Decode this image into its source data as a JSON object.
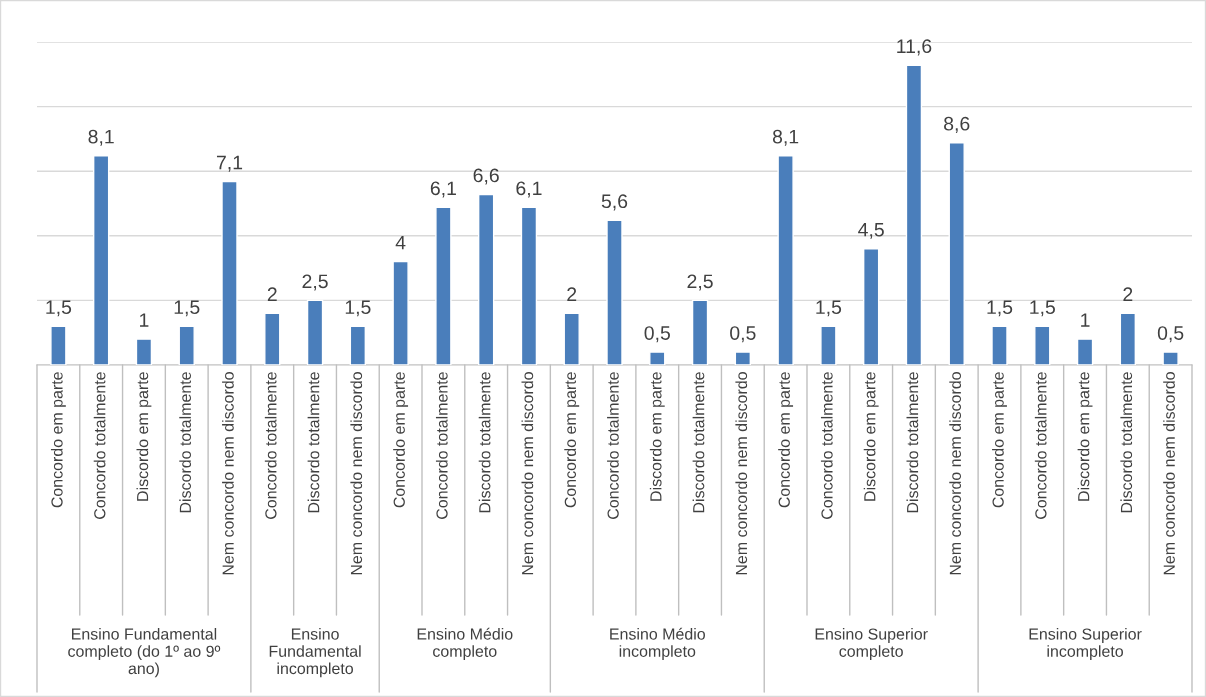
{
  "chart_data": {
    "type": "bar",
    "categories": [
      "Concordo em parte",
      "Concordo totalmente",
      "Discordo em parte",
      "Discordo totalmente",
      "Nem concordo nem discordo",
      "Concordo totalmente",
      "Discordo totalmente",
      "Nem concordo nem discordo",
      "Concordo em parte",
      "Concordo totalmente",
      "Discordo totalmente",
      "Nem concordo nem discordo",
      "Concordo em parte",
      "Concordo totalmente",
      "Discordo em parte",
      "Discordo totalmente",
      "Nem concordo nem discordo",
      "Concordo em parte",
      "Concordo totalmente",
      "Discordo em parte",
      "Discordo totalmente",
      "Nem concordo nem discordo",
      "Concordo em parte",
      "Concordo totalmente",
      "Discordo em parte",
      "Discordo totalmente",
      "Nem concordo nem discordo"
    ],
    "values": [
      1.5,
      8.1,
      1,
      1.5,
      7.1,
      2,
      2.5,
      1.5,
      4,
      6.1,
      6.6,
      6.1,
      2,
      5.6,
      0.5,
      2.5,
      0.5,
      8.1,
      1.5,
      4.5,
      11.6,
      8.6,
      1.5,
      1.5,
      1,
      2,
      0.5
    ],
    "color": "#4a7ebb",
    "value_labels": [
      "1,5",
      "8,1",
      "1",
      "1,5",
      "7,1",
      "2",
      "2,5",
      "1,5",
      "4",
      "6,1",
      "6,6",
      "6,1",
      "2",
      "5,6",
      "0,5",
      "2,5",
      "0,5",
      "8,1",
      "1,5",
      "4,5",
      "11,6",
      "8,6",
      "1,5",
      "1,5",
      "1",
      "2",
      "0,5"
    ],
    "ylim": [
      0,
      12.5
    ],
    "yticks": [
      {
        "value": 0,
        "label": null
      },
      {
        "value": 2.5,
        "label": null
      },
      {
        "value": 5,
        "label": null
      },
      {
        "value": 7.5,
        "label": null
      },
      {
        "value": 10,
        "label": null
      },
      {
        "value": 12.5,
        "label": null
      }
    ],
    "tick_labels": "x",
    "grid": "y",
    "annotations": [
      "Ensino Fundamental completo (do 1º ao 9º ano)",
      "Ensino Fundamental incompleto",
      "Ensino Médio completo",
      "Ensino Médio incompleto",
      "Ensino Superior completo",
      "Ensino Superior incompleto"
    ]
  }
}
